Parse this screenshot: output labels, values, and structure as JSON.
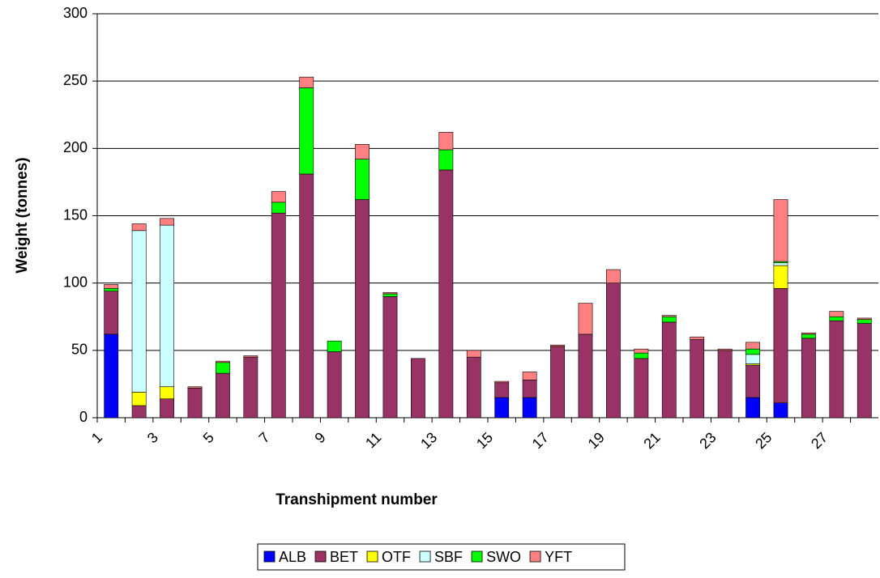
{
  "chart_data": {
    "type": "stacked_bar",
    "x_label": "Transhipment number",
    "y_label": "Weight (tonnes)",
    "categories": [
      "1",
      null,
      "3",
      null,
      "5",
      null,
      "7",
      null,
      "9",
      null,
      "11",
      null,
      "13",
      null,
      "15",
      null,
      "17",
      null,
      "19",
      null,
      "21",
      null,
      "23",
      null,
      "25",
      null,
      "27",
      null
    ],
    "series": [
      {
        "name": "ALB",
        "color": "#0000ff",
        "values": [
          62,
          0,
          0,
          0,
          0,
          0,
          0,
          0,
          0,
          0,
          0,
          0,
          0,
          0,
          15,
          15,
          0,
          0,
          0,
          0,
          0,
          0,
          0,
          15,
          11,
          0,
          0,
          0
        ]
      },
      {
        "name": "BET",
        "color": "#993366",
        "values": [
          32,
          9,
          14,
          22,
          33,
          45,
          152,
          181,
          49,
          162,
          90,
          44,
          184,
          45,
          11,
          13,
          53,
          62,
          100,
          44,
          71,
          58,
          50,
          24,
          85,
          59,
          72,
          70
        ]
      },
      {
        "name": "OTF",
        "color": "#ffff00",
        "values": [
          0,
          10,
          9,
          0,
          0,
          0,
          0,
          0,
          0,
          0,
          0,
          0,
          0,
          0,
          0,
          0,
          0,
          0,
          0,
          0,
          0,
          0,
          0,
          1,
          17,
          0,
          0,
          0
        ]
      },
      {
        "name": "SBF",
        "color": "#ccffff",
        "values": [
          0,
          120,
          120,
          0,
          0,
          0,
          0,
          0,
          0,
          0,
          0,
          0,
          0,
          0,
          0,
          0,
          0,
          0,
          0,
          0,
          0,
          0,
          0,
          7,
          2,
          0,
          0,
          0
        ]
      },
      {
        "name": "SWO",
        "color": "#00ff00",
        "values": [
          2,
          0,
          0,
          0,
          8,
          0,
          8,
          64,
          8,
          30,
          2,
          0,
          15,
          0,
          0,
          0,
          0,
          0,
          0,
          4,
          4,
          0,
          0,
          4,
          1,
          3,
          3,
          3
        ]
      },
      {
        "name": "YFT",
        "color": "#ff8080",
        "values": [
          3,
          5,
          5,
          1,
          1,
          1,
          8,
          8,
          0,
          11,
          1,
          0,
          13,
          5,
          1,
          6,
          1,
          23,
          10,
          3,
          1,
          2,
          1,
          5,
          46,
          1,
          4,
          1
        ]
      }
    ],
    "ylim": [
      0,
      300
    ],
    "yticks": [
      0,
      50,
      100,
      150,
      200,
      250,
      300
    ],
    "grid": true,
    "legend": "bottom"
  }
}
